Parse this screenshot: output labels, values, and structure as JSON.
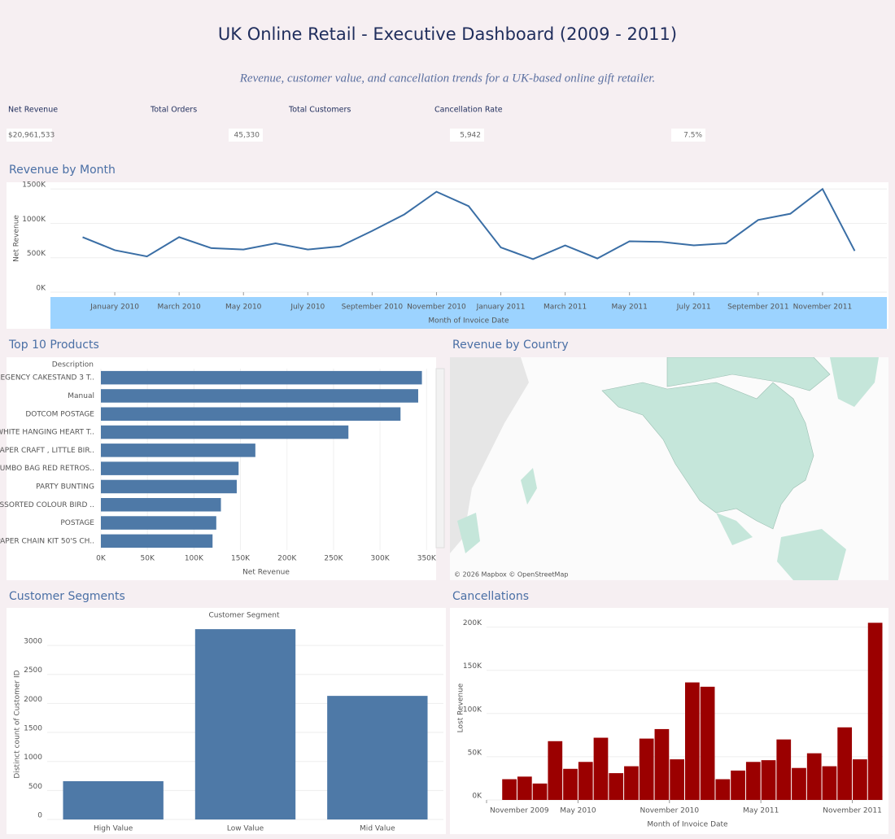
{
  "header": {
    "title": "UK Online Retail - Executive Dashboard (2009 - 2011)",
    "subtitle": "Revenue, customer value, and cancellation trends for a UK-based online gift retailer."
  },
  "kpis": [
    {
      "label": "Net Revenue",
      "value": "$20,961,533"
    },
    {
      "label": "Total Orders",
      "value": "45,330"
    },
    {
      "label": "Total Customers",
      "value": "5,942"
    },
    {
      "label": "Cancellation Rate",
      "value": "7.5%"
    }
  ],
  "map": {
    "title": "Revenue by Country",
    "attribution": "© 2026 Mapbox © OpenStreetMap"
  },
  "chart_data": [
    {
      "type": "line",
      "title": "Revenue by Month",
      "xlabel": "Month of Invoice Date",
      "ylabel": "Net Revenue",
      "color": "#3a6ea5",
      "grid": true,
      "x": [
        "2009-12",
        "2010-01",
        "2010-02",
        "2010-03",
        "2010-04",
        "2010-05",
        "2010-06",
        "2010-07",
        "2010-08",
        "2010-09",
        "2010-10",
        "2010-11",
        "2010-12",
        "2011-01",
        "2011-02",
        "2011-03",
        "2011-04",
        "2011-05",
        "2011-06",
        "2011-07",
        "2011-08",
        "2011-09",
        "2011-10",
        "2011-11",
        "2011-12"
      ],
      "values": [
        800000,
        610000,
        520000,
        800000,
        640000,
        620000,
        710000,
        620000,
        665000,
        890000,
        1130000,
        1460000,
        1250000,
        650000,
        480000,
        680000,
        490000,
        740000,
        730000,
        680000,
        710000,
        1050000,
        1140000,
        1500000,
        600000
      ],
      "xlim": [
        "2009-11",
        "2012-01"
      ],
      "xticks": [
        {
          "value": "2010-01",
          "label": "January 2010"
        },
        {
          "value": "2010-03",
          "label": "March 2010"
        },
        {
          "value": "2010-05",
          "label": "May 2010"
        },
        {
          "value": "2010-07",
          "label": "July 2010"
        },
        {
          "value": "2010-09",
          "label": "September 2010"
        },
        {
          "value": "2010-11",
          "label": "November 2010"
        },
        {
          "value": "2011-01",
          "label": "January 2011"
        },
        {
          "value": "2011-03",
          "label": "March 2011"
        },
        {
          "value": "2011-05",
          "label": "May 2011"
        },
        {
          "value": "2011-07",
          "label": "July 2011"
        },
        {
          "value": "2011-09",
          "label": "September 2011"
        },
        {
          "value": "2011-11",
          "label": "November 2011"
        }
      ],
      "ylim": [
        0,
        1550000
      ],
      "yticks": [
        {
          "value": 0,
          "label": "0K"
        },
        {
          "value": 500000,
          "label": "500K"
        },
        {
          "value": 1000000,
          "label": "1000K"
        },
        {
          "value": 1500000,
          "label": "1500K"
        }
      ]
    },
    {
      "type": "bar",
      "orientation": "horizontal",
      "title": "Top 10 Products",
      "xlabel": "Net Revenue",
      "ylabel": "Description",
      "color": "#4e79a7",
      "grid": true,
      "categories": [
        "REGENCY CAKESTAND 3 T..",
        "Manual",
        "DOTCOM POSTAGE",
        "WHITE HANGING HEART T..",
        "PAPER CRAFT , LITTLE BIR..",
        "JUMBO BAG RED RETROS..",
        "PARTY BUNTING",
        "ASSORTED COLOUR BIRD ..",
        "POSTAGE",
        "PAPER CHAIN KIT 50'S CH.."
      ],
      "values": [
        345000,
        341000,
        322000,
        266000,
        166000,
        148000,
        146000,
        129000,
        124000,
        120000
      ],
      "xlim": [
        0,
        355000
      ],
      "xticks": [
        {
          "value": 0,
          "label": "0K"
        },
        {
          "value": 50000,
          "label": "50K"
        },
        {
          "value": 100000,
          "label": "100K"
        },
        {
          "value": 150000,
          "label": "150K"
        },
        {
          "value": 200000,
          "label": "200K"
        },
        {
          "value": 250000,
          "label": "250K"
        },
        {
          "value": 300000,
          "label": "300K"
        },
        {
          "value": 350000,
          "label": "350K"
        }
      ]
    },
    {
      "type": "bar",
      "title": "Customer Segments",
      "xlabel": "Customer Segment",
      "ylabel": "Distinct count of Customer ID",
      "color": "#4e79a7",
      "grid": true,
      "categories": [
        "High Value",
        "Low Value",
        "Mid Value"
      ],
      "values": [
        660,
        3280,
        2130
      ],
      "ylim": [
        0,
        3380
      ],
      "yticks": [
        0,
        500,
        1000,
        1500,
        2000,
        2500,
        3000
      ]
    },
    {
      "type": "bar",
      "title": "Cancellations",
      "xlabel": "Month of Invoice Date",
      "ylabel": "Lost Revenue",
      "color": "#9b0000",
      "grid": true,
      "x": [
        "2009-12",
        "2010-01",
        "2010-02",
        "2010-03",
        "2010-04",
        "2010-05",
        "2010-06",
        "2010-07",
        "2010-08",
        "2010-09",
        "2010-10",
        "2010-11",
        "2010-12",
        "2011-01",
        "2011-02",
        "2011-03",
        "2011-04",
        "2011-05",
        "2011-06",
        "2011-07",
        "2011-08",
        "2011-09",
        "2011-10",
        "2011-11",
        "2011-12"
      ],
      "values": [
        24000,
        27000,
        19000,
        68000,
        36000,
        44000,
        72000,
        31000,
        39000,
        71000,
        82000,
        47000,
        136000,
        131000,
        24000,
        34000,
        44000,
        46000,
        70000,
        37000,
        54000,
        39000,
        84000,
        47000,
        205000
      ],
      "xlim": [
        "2009-11",
        "2012-01"
      ],
      "xticks": [
        {
          "value": "2009-11",
          "label": "November 2009"
        },
        {
          "value": "2010-05",
          "label": "May 2010"
        },
        {
          "value": "2010-11",
          "label": "November 2010"
        },
        {
          "value": "2011-05",
          "label": "May 2011"
        },
        {
          "value": "2011-11",
          "label": "November 2011"
        }
      ],
      "ylim": [
        0,
        210000
      ],
      "yticks": [
        {
          "value": 0,
          "label": "0K"
        },
        {
          "value": 50000,
          "label": "50K"
        },
        {
          "value": 100000,
          "label": "100K"
        },
        {
          "value": 150000,
          "label": "150K"
        },
        {
          "value": 200000,
          "label": "200K"
        }
      ]
    }
  ]
}
